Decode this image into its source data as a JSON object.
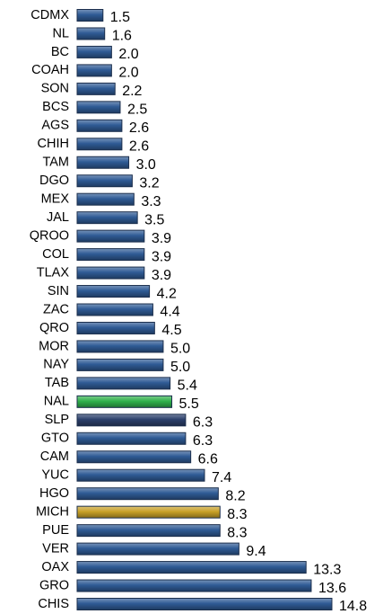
{
  "chart_data": {
    "type": "bar",
    "orientation": "horizontal",
    "categories": [
      "CDMX",
      "NL",
      "BC",
      "COAH",
      "SON",
      "BCS",
      "AGS",
      "CHIH",
      "TAM",
      "DGO",
      "MEX",
      "JAL",
      "QROO",
      "COL",
      "TLAX",
      "SIN",
      "ZAC",
      "QRO",
      "MOR",
      "NAY",
      "TAB",
      "NAL",
      "SLP",
      "GTO",
      "CAM",
      "YUC",
      "HGO",
      "MICH",
      "PUE",
      "VER",
      "OAX",
      "GRO",
      "CHIS"
    ],
    "values": [
      1.5,
      1.6,
      2.0,
      2.0,
      2.2,
      2.5,
      2.6,
      2.6,
      3.0,
      3.2,
      3.3,
      3.5,
      3.9,
      3.9,
      3.9,
      4.2,
      4.4,
      4.5,
      5.0,
      5.0,
      5.4,
      5.5,
      6.3,
      6.3,
      6.6,
      7.4,
      8.2,
      8.3,
      8.3,
      9.4,
      13.3,
      13.6,
      14.8
    ],
    "value_labels": [
      "1.5",
      "1.6",
      "2.0",
      "2.0",
      "2.2",
      "2.5",
      "2.6",
      "2.6",
      "3.0",
      "3.2",
      "3.3",
      "3.5",
      "3.9",
      "3.9",
      "3.9",
      "4.2",
      "4.4",
      "4.5",
      "5.0",
      "5.0",
      "5.4",
      "5.5",
      "6.3",
      "6.3",
      "6.6",
      "7.4",
      "8.2",
      "8.3",
      "8.3",
      "9.4",
      "13.3",
      "13.6",
      "14.8"
    ],
    "colors": [
      "#2f5b95",
      "#2f5b95",
      "#2f5b95",
      "#2f5b95",
      "#2f5b95",
      "#2f5b95",
      "#2f5b95",
      "#2f5b95",
      "#2f5b95",
      "#2f5b95",
      "#2f5b95",
      "#2f5b95",
      "#2f5b95",
      "#2f5b95",
      "#2f5b95",
      "#2f5b95",
      "#2f5b95",
      "#2f5b95",
      "#2f5b95",
      "#2f5b95",
      "#2f5b95",
      "#2fb24c",
      "#2b3f6b",
      "#2f5b95",
      "#2f5b95",
      "#2f5b95",
      "#2f5b95",
      "#c9a227",
      "#2f5b95",
      "#2f5b95",
      "#2f5b95",
      "#2f5b95",
      "#2f5b95"
    ]
  }
}
